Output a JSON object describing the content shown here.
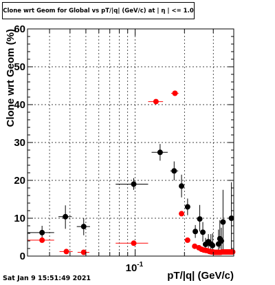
{
  "title": "Clone wrt Geom for Global vs pT/|q| (GeV/c) at | η | <= 1.0",
  "footer": "Sat Jan  9 15:51:49 2021",
  "chart_data": {
    "type": "scatter",
    "xlabel": "pT/|q| (GeV/c)",
    "ylabel": "Clone wrt Geom (%)",
    "xscale": "log",
    "xlim": [
      0.022,
      0.4
    ],
    "ylim": [
      0,
      60
    ],
    "yticks": [
      0,
      10,
      20,
      30,
      40,
      50,
      60
    ],
    "xtick_label": "10^{-1}",
    "xtick_value": 0.1,
    "grid": true,
    "series": [
      {
        "color": "#000000",
        "points": [
          {
            "x": 0.027,
            "y": 6.2,
            "xlo": 0.022,
            "xhi": 0.032,
            "ylo": 4.3,
            "yhi": 8.0
          },
          {
            "x": 0.0375,
            "y": 10.4,
            "xlo": 0.034,
            "xhi": 0.041,
            "ylo": 7.2,
            "yhi": 13.4
          },
          {
            "x": 0.0485,
            "y": 7.8,
            "xlo": 0.044,
            "xhi": 0.053,
            "ylo": 5.5,
            "yhi": 10.0
          },
          {
            "x": 0.098,
            "y": 19.0,
            "xlo": 0.076,
            "xhi": 0.12,
            "ylo": 17.5,
            "yhi": 20.6
          },
          {
            "x": 0.142,
            "y": 27.4,
            "xlo": 0.126,
            "xhi": 0.158,
            "ylo": 25.2,
            "yhi": 29.6
          },
          {
            "x": 0.173,
            "y": 22.5,
            "xlo": 0.164,
            "xhi": 0.183,
            "ylo": 20.0,
            "yhi": 25.0
          },
          {
            "x": 0.192,
            "y": 18.5,
            "xlo": 0.187,
            "xhi": 0.198,
            "ylo": 15.5,
            "yhi": 21.5
          },
          {
            "x": 0.209,
            "y": 13.0,
            "xlo": 0.202,
            "xhi": 0.216,
            "ylo": 10.8,
            "yhi": 15.2
          },
          {
            "x": 0.233,
            "y": 6.5,
            "xlo": 0.226,
            "xhi": 0.241,
            "ylo": 4.8,
            "yhi": 8.2
          },
          {
            "x": 0.248,
            "y": 9.8,
            "xlo": 0.244,
            "xhi": 0.252,
            "ylo": 6.5,
            "yhi": 13.5
          },
          {
            "x": 0.259,
            "y": 6.3,
            "xlo": 0.255,
            "xhi": 0.263,
            "ylo": 3.8,
            "yhi": 9.0
          },
          {
            "x": 0.269,
            "y": 3.1,
            "xlo": 0.265,
            "xhi": 0.273,
            "ylo": 1.8,
            "yhi": 4.8
          },
          {
            "x": 0.28,
            "y": 3.8,
            "xlo": 0.276,
            "xhi": 0.284,
            "ylo": 2.2,
            "yhi": 5.8
          },
          {
            "x": 0.29,
            "y": 3.2,
            "xlo": 0.287,
            "xhi": 0.293,
            "ylo": 1.5,
            "yhi": 5.8
          },
          {
            "x": 0.297,
            "y": 2.8,
            "xlo": 0.294,
            "xhi": 0.3,
            "ylo": 1.0,
            "yhi": 6.0
          },
          {
            "x": 0.323,
            "y": 3.2,
            "xlo": 0.32,
            "xhi": 0.326,
            "ylo": 1.0,
            "yhi": 7.0
          },
          {
            "x": 0.329,
            "y": 4.6,
            "xlo": 0.326,
            "xhi": 0.332,
            "ylo": 2.0,
            "yhi": 9.5
          },
          {
            "x": 0.336,
            "y": 4.0,
            "xlo": 0.333,
            "xhi": 0.339,
            "ylo": 1.0,
            "yhi": 7.5
          },
          {
            "x": 0.344,
            "y": 9.0,
            "xlo": 0.341,
            "xhi": 0.347,
            "ylo": 1.0,
            "yhi": 17.5
          },
          {
            "x": 0.387,
            "y": 10.0,
            "xlo": 0.384,
            "xhi": 0.39,
            "ylo": 1.0,
            "yhi": 19.5
          }
        ]
      },
      {
        "color": "#ff0000",
        "points": [
          {
            "x": 0.027,
            "y": 4.2,
            "xlo": 0.022,
            "xhi": 0.032
          },
          {
            "x": 0.038,
            "y": 1.2,
            "xlo": 0.0345,
            "xhi": 0.0415
          },
          {
            "x": 0.0485,
            "y": 1.0,
            "xlo": 0.0445,
            "xhi": 0.0525
          },
          {
            "x": 0.098,
            "y": 3.4,
            "xlo": 0.076,
            "xhi": 0.12
          },
          {
            "x": 0.134,
            "y": 40.8,
            "xlo": 0.12,
            "xhi": 0.148
          },
          {
            "x": 0.175,
            "y": 43.0,
            "xlo": 0.166,
            "xhi": 0.184
          },
          {
            "x": 0.192,
            "y": 11.2,
            "xlo": 0.188,
            "xhi": 0.196
          },
          {
            "x": 0.209,
            "y": 4.2,
            "xlo": 0.203,
            "xhi": 0.215
          },
          {
            "x": 0.231,
            "y": 2.6,
            "xlo": 0.225,
            "xhi": 0.237
          },
          {
            "x": 0.245,
            "y": 2.2
          },
          {
            "x": 0.254,
            "y": 1.8
          },
          {
            "x": 0.262,
            "y": 1.6
          },
          {
            "x": 0.27,
            "y": 1.5
          },
          {
            "x": 0.278,
            "y": 1.4
          },
          {
            "x": 0.285,
            "y": 1.2
          },
          {
            "x": 0.292,
            "y": 1.1
          },
          {
            "x": 0.299,
            "y": 1.1
          },
          {
            "x": 0.305,
            "y": 1.0
          },
          {
            "x": 0.312,
            "y": 1.0
          },
          {
            "x": 0.319,
            "y": 1.0
          },
          {
            "x": 0.326,
            "y": 1.0
          },
          {
            "x": 0.333,
            "y": 1.0
          },
          {
            "x": 0.34,
            "y": 1.1
          },
          {
            "x": 0.347,
            "y": 1.1
          },
          {
            "x": 0.354,
            "y": 1.1
          },
          {
            "x": 0.361,
            "y": 1.1
          },
          {
            "x": 0.368,
            "y": 1.1
          },
          {
            "x": 0.375,
            "y": 1.1
          },
          {
            "x": 0.382,
            "y": 1.1
          },
          {
            "x": 0.388,
            "y": 1.1
          },
          {
            "x": 0.394,
            "y": 1.1
          }
        ]
      }
    ]
  }
}
